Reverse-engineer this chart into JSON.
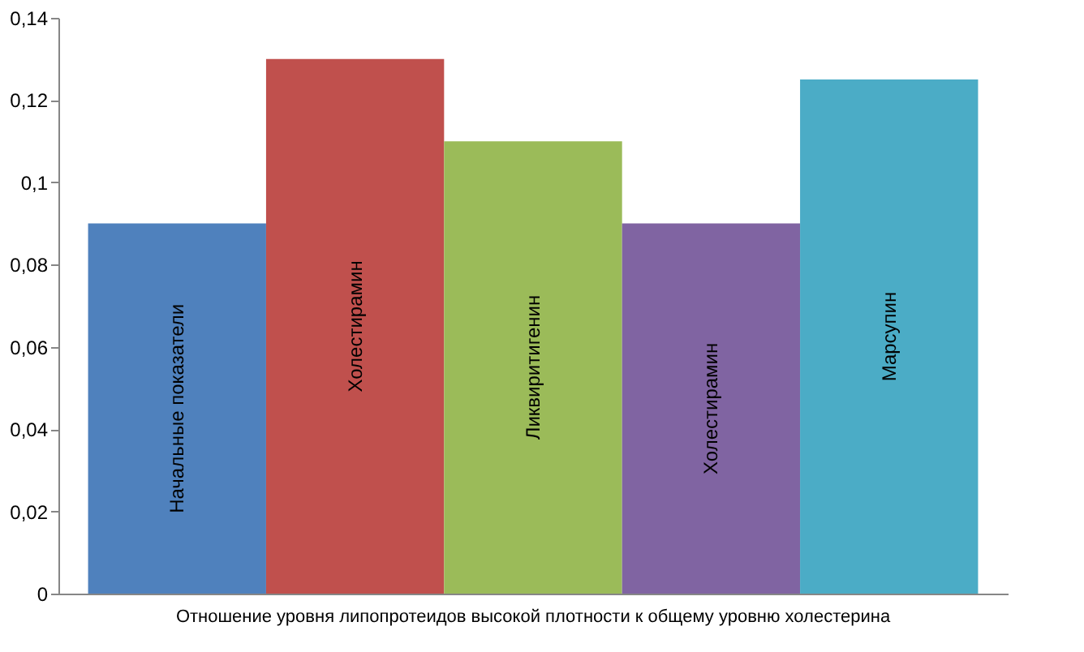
{
  "chart_data": {
    "type": "bar",
    "categories": [
      "Отношение уровня липопротеидов высокой плотности к общему уровню холестерина"
    ],
    "series": [
      {
        "name": "Начальные показатели",
        "color": "#4f81bd",
        "values": [
          0.09
        ]
      },
      {
        "name": "Холестирамин",
        "color": "#c0504d",
        "values": [
          0.13
        ]
      },
      {
        "name": "Ликвиритигенин",
        "color": "#9bbb59",
        "values": [
          0.11
        ]
      },
      {
        "name": "Холестирамин",
        "color": "#8064a2",
        "values": [
          0.09
        ]
      },
      {
        "name": "Марсупин",
        "color": "#4bacc6",
        "values": [
          0.125
        ]
      }
    ],
    "ylim": [
      0,
      0.14
    ],
    "yticks": [
      {
        "value": 0,
        "label": "0"
      },
      {
        "value": 0.02,
        "label": "0,02"
      },
      {
        "value": 0.04,
        "label": "0,04"
      },
      {
        "value": 0.06,
        "label": "0,06"
      },
      {
        "value": 0.08,
        "label": "0,08"
      },
      {
        "value": 0.1,
        "label": "0,1"
      },
      {
        "value": 0.12,
        "label": "0,12"
      },
      {
        "value": 0.14,
        "label": "0,14"
      }
    ],
    "grid": false,
    "legend": false
  }
}
